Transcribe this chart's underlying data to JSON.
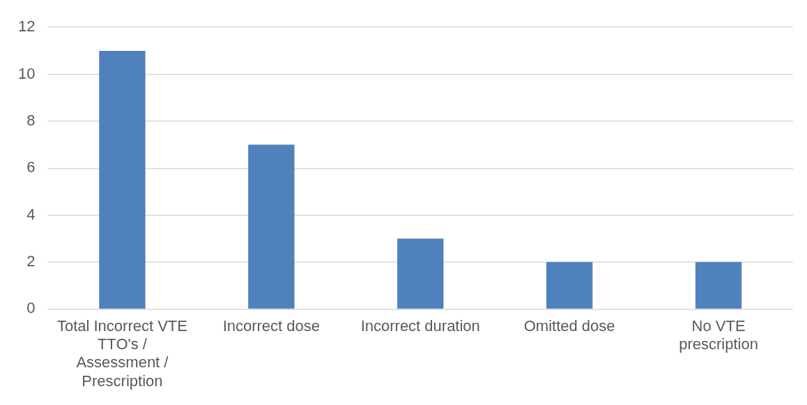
{
  "chart_data": {
    "type": "bar",
    "categories": [
      "Total Incorrect VTE TTO's / Assessment / Prescription",
      "Incorrect dose",
      "Incorrect duration",
      "Omitted dose",
      "No VTE prescription"
    ],
    "values": [
      11,
      7,
      3,
      2,
      2
    ],
    "color": "#4f81bd",
    "ylim": [
      0,
      12
    ],
    "yticks": [
      0,
      2,
      4,
      6,
      8,
      10,
      12
    ],
    "grid": "y",
    "legend": false
  }
}
